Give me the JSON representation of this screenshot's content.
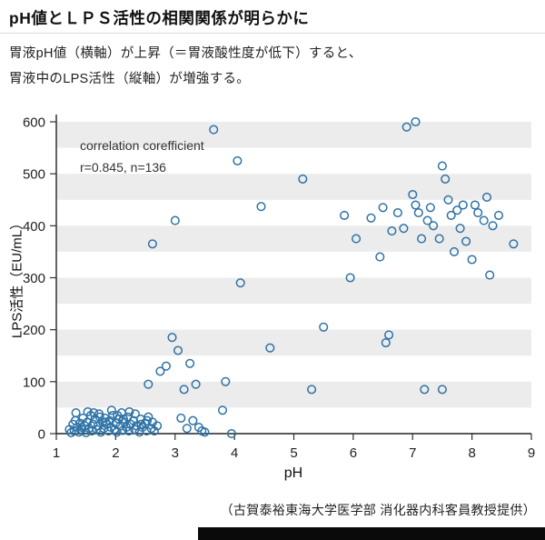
{
  "title": "pH値とＬＰＳ活性の相関関係が明らかに",
  "description_line1": "胃液pH値（横軸）が上昇（＝胃液酸性度が低下）すると、",
  "description_line2": "胃液中のLPS活性（縦軸）が増強する。",
  "footer": "（古賀泰裕東海大学医学部 消化器内科客員教授提供）",
  "chart_data": {
    "type": "scatter",
    "title": "",
    "annotation_line1": "correlation corefficient",
    "annotation_line2": "r=0.845, n=136",
    "xlabel": "pH",
    "ylabel": "LPS活性（EU/mL）",
    "xlim": [
      1,
      9
    ],
    "ylim": [
      0,
      600
    ],
    "xticks": [
      1,
      2,
      3,
      4,
      5,
      6,
      7,
      8,
      9
    ],
    "yticks": [
      0,
      100,
      200,
      300,
      400,
      500,
      600
    ],
    "grid": "horizontal-bands",
    "legend": "none",
    "point_color": "#2e73a6",
    "band_color": "#ececec",
    "bands": [
      [
        50,
        100
      ],
      [
        150,
        200
      ],
      [
        250,
        300
      ],
      [
        350,
        400
      ],
      [
        450,
        500
      ],
      [
        550,
        600
      ]
    ],
    "n": 136,
    "r": 0.845,
    "points": [
      [
        1.22,
        8
      ],
      [
        1.25,
        2
      ],
      [
        1.28,
        18
      ],
      [
        1.3,
        5
      ],
      [
        1.32,
        25
      ],
      [
        1.35,
        12
      ],
      [
        1.38,
        3
      ],
      [
        1.4,
        20
      ],
      [
        1.42,
        8
      ],
      [
        1.45,
        30
      ],
      [
        1.48,
        15
      ],
      [
        1.5,
        2
      ],
      [
        1.52,
        22
      ],
      [
        1.55,
        10
      ],
      [
        1.58,
        35
      ],
      [
        1.6,
        5
      ],
      [
        1.62,
        18
      ],
      [
        1.65,
        28
      ],
      [
        1.68,
        8
      ],
      [
        1.7,
        15
      ],
      [
        1.72,
        38
      ],
      [
        1.75,
        3
      ],
      [
        1.78,
        22
      ],
      [
        1.8,
        10
      ],
      [
        1.82,
        30
      ],
      [
        1.85,
        18
      ],
      [
        1.88,
        5
      ],
      [
        1.9,
        25
      ],
      [
        1.92,
        12
      ],
      [
        1.95,
        35
      ],
      [
        1.98,
        8
      ],
      [
        2.0,
        20
      ],
      [
        2.02,
        3
      ],
      [
        2.05,
        28
      ],
      [
        2.08,
        15
      ],
      [
        2.1,
        40
      ],
      [
        2.12,
        6
      ],
      [
        2.15,
        22
      ],
      [
        2.18,
        12
      ],
      [
        2.2,
        32
      ],
      [
        2.22,
        5
      ],
      [
        2.25,
        18
      ],
      [
        2.3,
        25
      ],
      [
        2.32,
        8
      ],
      [
        2.35,
        15
      ],
      [
        2.4,
        3
      ],
      [
        2.42,
        28
      ],
      [
        2.45,
        12
      ],
      [
        2.5,
        20
      ],
      [
        2.52,
        5
      ],
      [
        2.55,
        32
      ],
      [
        2.6,
        10
      ],
      [
        2.62,
        22
      ],
      [
        2.65,
        5
      ],
      [
        2.7,
        15
      ],
      [
        1.33,
        40
      ],
      [
        1.53,
        42
      ],
      [
        1.73,
        32
      ],
      [
        1.93,
        45
      ],
      [
        2.13,
        28
      ],
      [
        2.33,
        38
      ],
      [
        2.53,
        25
      ],
      [
        1.43,
        12
      ],
      [
        1.63,
        40
      ],
      [
        1.83,
        22
      ],
      [
        2.03,
        35
      ],
      [
        2.23,
        42
      ],
      [
        2.43,
        18
      ],
      [
        2.55,
        95
      ],
      [
        2.62,
        365
      ],
      [
        2.75,
        120
      ],
      [
        2.85,
        130
      ],
      [
        2.95,
        185
      ],
      [
        3.0,
        410
      ],
      [
        3.05,
        160
      ],
      [
        3.1,
        30
      ],
      [
        3.15,
        85
      ],
      [
        3.2,
        10
      ],
      [
        3.25,
        135
      ],
      [
        3.3,
        25
      ],
      [
        3.35,
        95
      ],
      [
        3.4,
        12
      ],
      [
        3.45,
        5
      ],
      [
        3.5,
        3
      ],
      [
        3.65,
        585
      ],
      [
        3.8,
        45
      ],
      [
        3.85,
        100
      ],
      [
        3.95,
        0
      ],
      [
        4.05,
        525
      ],
      [
        4.1,
        290
      ],
      [
        4.45,
        437
      ],
      [
        4.6,
        165
      ],
      [
        5.15,
        490
      ],
      [
        5.3,
        85
      ],
      [
        5.5,
        205
      ],
      [
        5.85,
        420
      ],
      [
        5.95,
        300
      ],
      [
        6.05,
        375
      ],
      [
        6.3,
        415
      ],
      [
        6.45,
        340
      ],
      [
        6.5,
        435
      ],
      [
        6.55,
        175
      ],
      [
        6.6,
        190
      ],
      [
        6.65,
        390
      ],
      [
        6.75,
        425
      ],
      [
        6.85,
        395
      ],
      [
        6.9,
        590
      ],
      [
        7.05,
        600
      ],
      [
        7.0,
        460
      ],
      [
        7.05,
        440
      ],
      [
        7.1,
        425
      ],
      [
        7.15,
        375
      ],
      [
        7.2,
        85
      ],
      [
        7.25,
        410
      ],
      [
        7.3,
        435
      ],
      [
        7.35,
        400
      ],
      [
        7.45,
        375
      ],
      [
        7.5,
        515
      ],
      [
        7.5,
        85
      ],
      [
        7.55,
        490
      ],
      [
        7.6,
        450
      ],
      [
        7.65,
        420
      ],
      [
        7.7,
        350
      ],
      [
        7.75,
        430
      ],
      [
        7.8,
        395
      ],
      [
        7.85,
        440
      ],
      [
        7.9,
        370
      ],
      [
        8.0,
        335
      ],
      [
        8.05,
        440
      ],
      [
        8.1,
        425
      ],
      [
        8.2,
        410
      ],
      [
        8.25,
        455
      ],
      [
        8.3,
        305
      ],
      [
        8.35,
        400
      ],
      [
        8.45,
        420
      ],
      [
        8.7,
        365
      ]
    ]
  }
}
